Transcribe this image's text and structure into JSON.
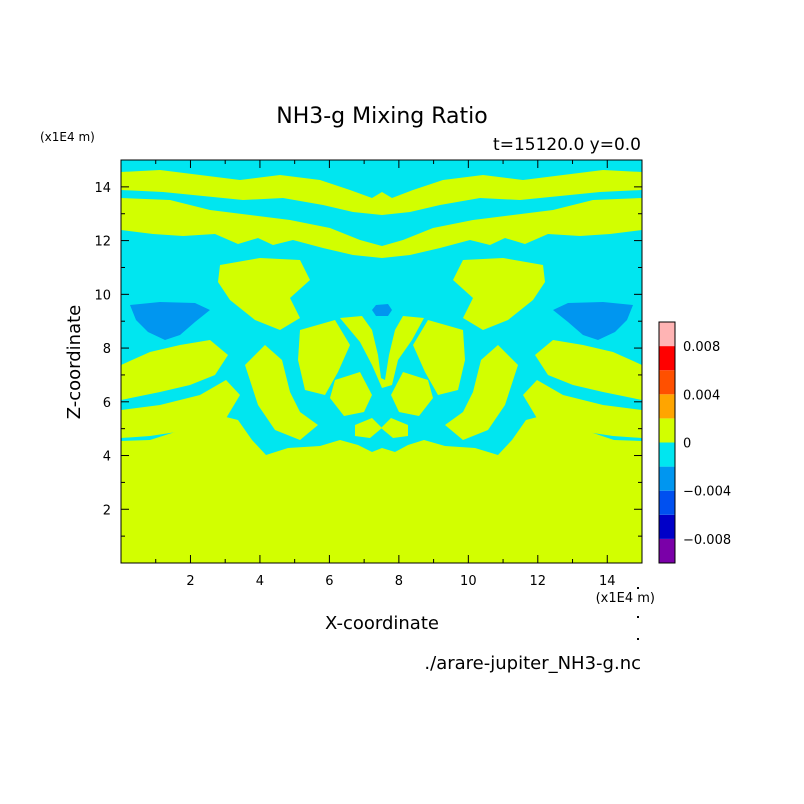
{
  "chart_data": {
    "type": "heatmap",
    "title": "NH3-g Mixing Ratio",
    "subtitle": "t=15120.0 y=0.0",
    "xlabel": "X-coordinate",
    "ylabel": "Z-coordinate",
    "x_unit": "(x1E4 m)",
    "y_unit": "(x1E4 m)",
    "source": "./arare-jupiter_NH3-g.nc",
    "xlim": [
      0,
      15
    ],
    "ylim": [
      0,
      15
    ],
    "xticks": [
      2,
      4,
      6,
      8,
      10,
      12,
      14
    ],
    "yticks": [
      2,
      4,
      6,
      8,
      10,
      12,
      14
    ],
    "colorbar": {
      "levels": [
        -0.01,
        -0.008,
        -0.006,
        -0.004,
        -0.002,
        0,
        0.002,
        0.004,
        0.006,
        0.008,
        0.01
      ],
      "colors": [
        "#7a00a8",
        "#0000c8",
        "#0050f0",
        "#0096f0",
        "#00e6f0",
        "#d2ff00",
        "#ffa500",
        "#ff5000",
        "#ff0000",
        "#ffb4b4"
      ],
      "tick_values": [
        0.008,
        0.004,
        0,
        -0.004,
        -0.008
      ],
      "tick_labels": [
        "0.008",
        "0.004",
        "0",
        "−0.004",
        "−0.008"
      ]
    },
    "field": {
      "background_value": -0.001,
      "regions": [
        {
          "name": "lower-yellow-layer",
          "value": 0.001,
          "extent_z": [
            0,
            4.6
          ]
        },
        {
          "name": "mid-yellow-blobs",
          "value": 0.001,
          "extent_z": [
            4.6,
            11.5
          ]
        },
        {
          "name": "upper-yellow-bands",
          "value": 0.001,
          "extent_z": [
            11.8,
            14.9
          ]
        },
        {
          "name": "blue-patch-left",
          "value": -0.003,
          "x": [
            0.3,
            2.5
          ],
          "z": [
            8.5,
            9.6
          ]
        },
        {
          "name": "blue-patch-right",
          "value": -0.003,
          "x": [
            12.5,
            14.7
          ],
          "z": [
            8.5,
            9.6
          ]
        },
        {
          "name": "blue-patch-center",
          "value": -0.003,
          "x": [
            7.3,
            7.7
          ],
          "z": [
            9.2,
            9.6
          ]
        }
      ]
    }
  }
}
